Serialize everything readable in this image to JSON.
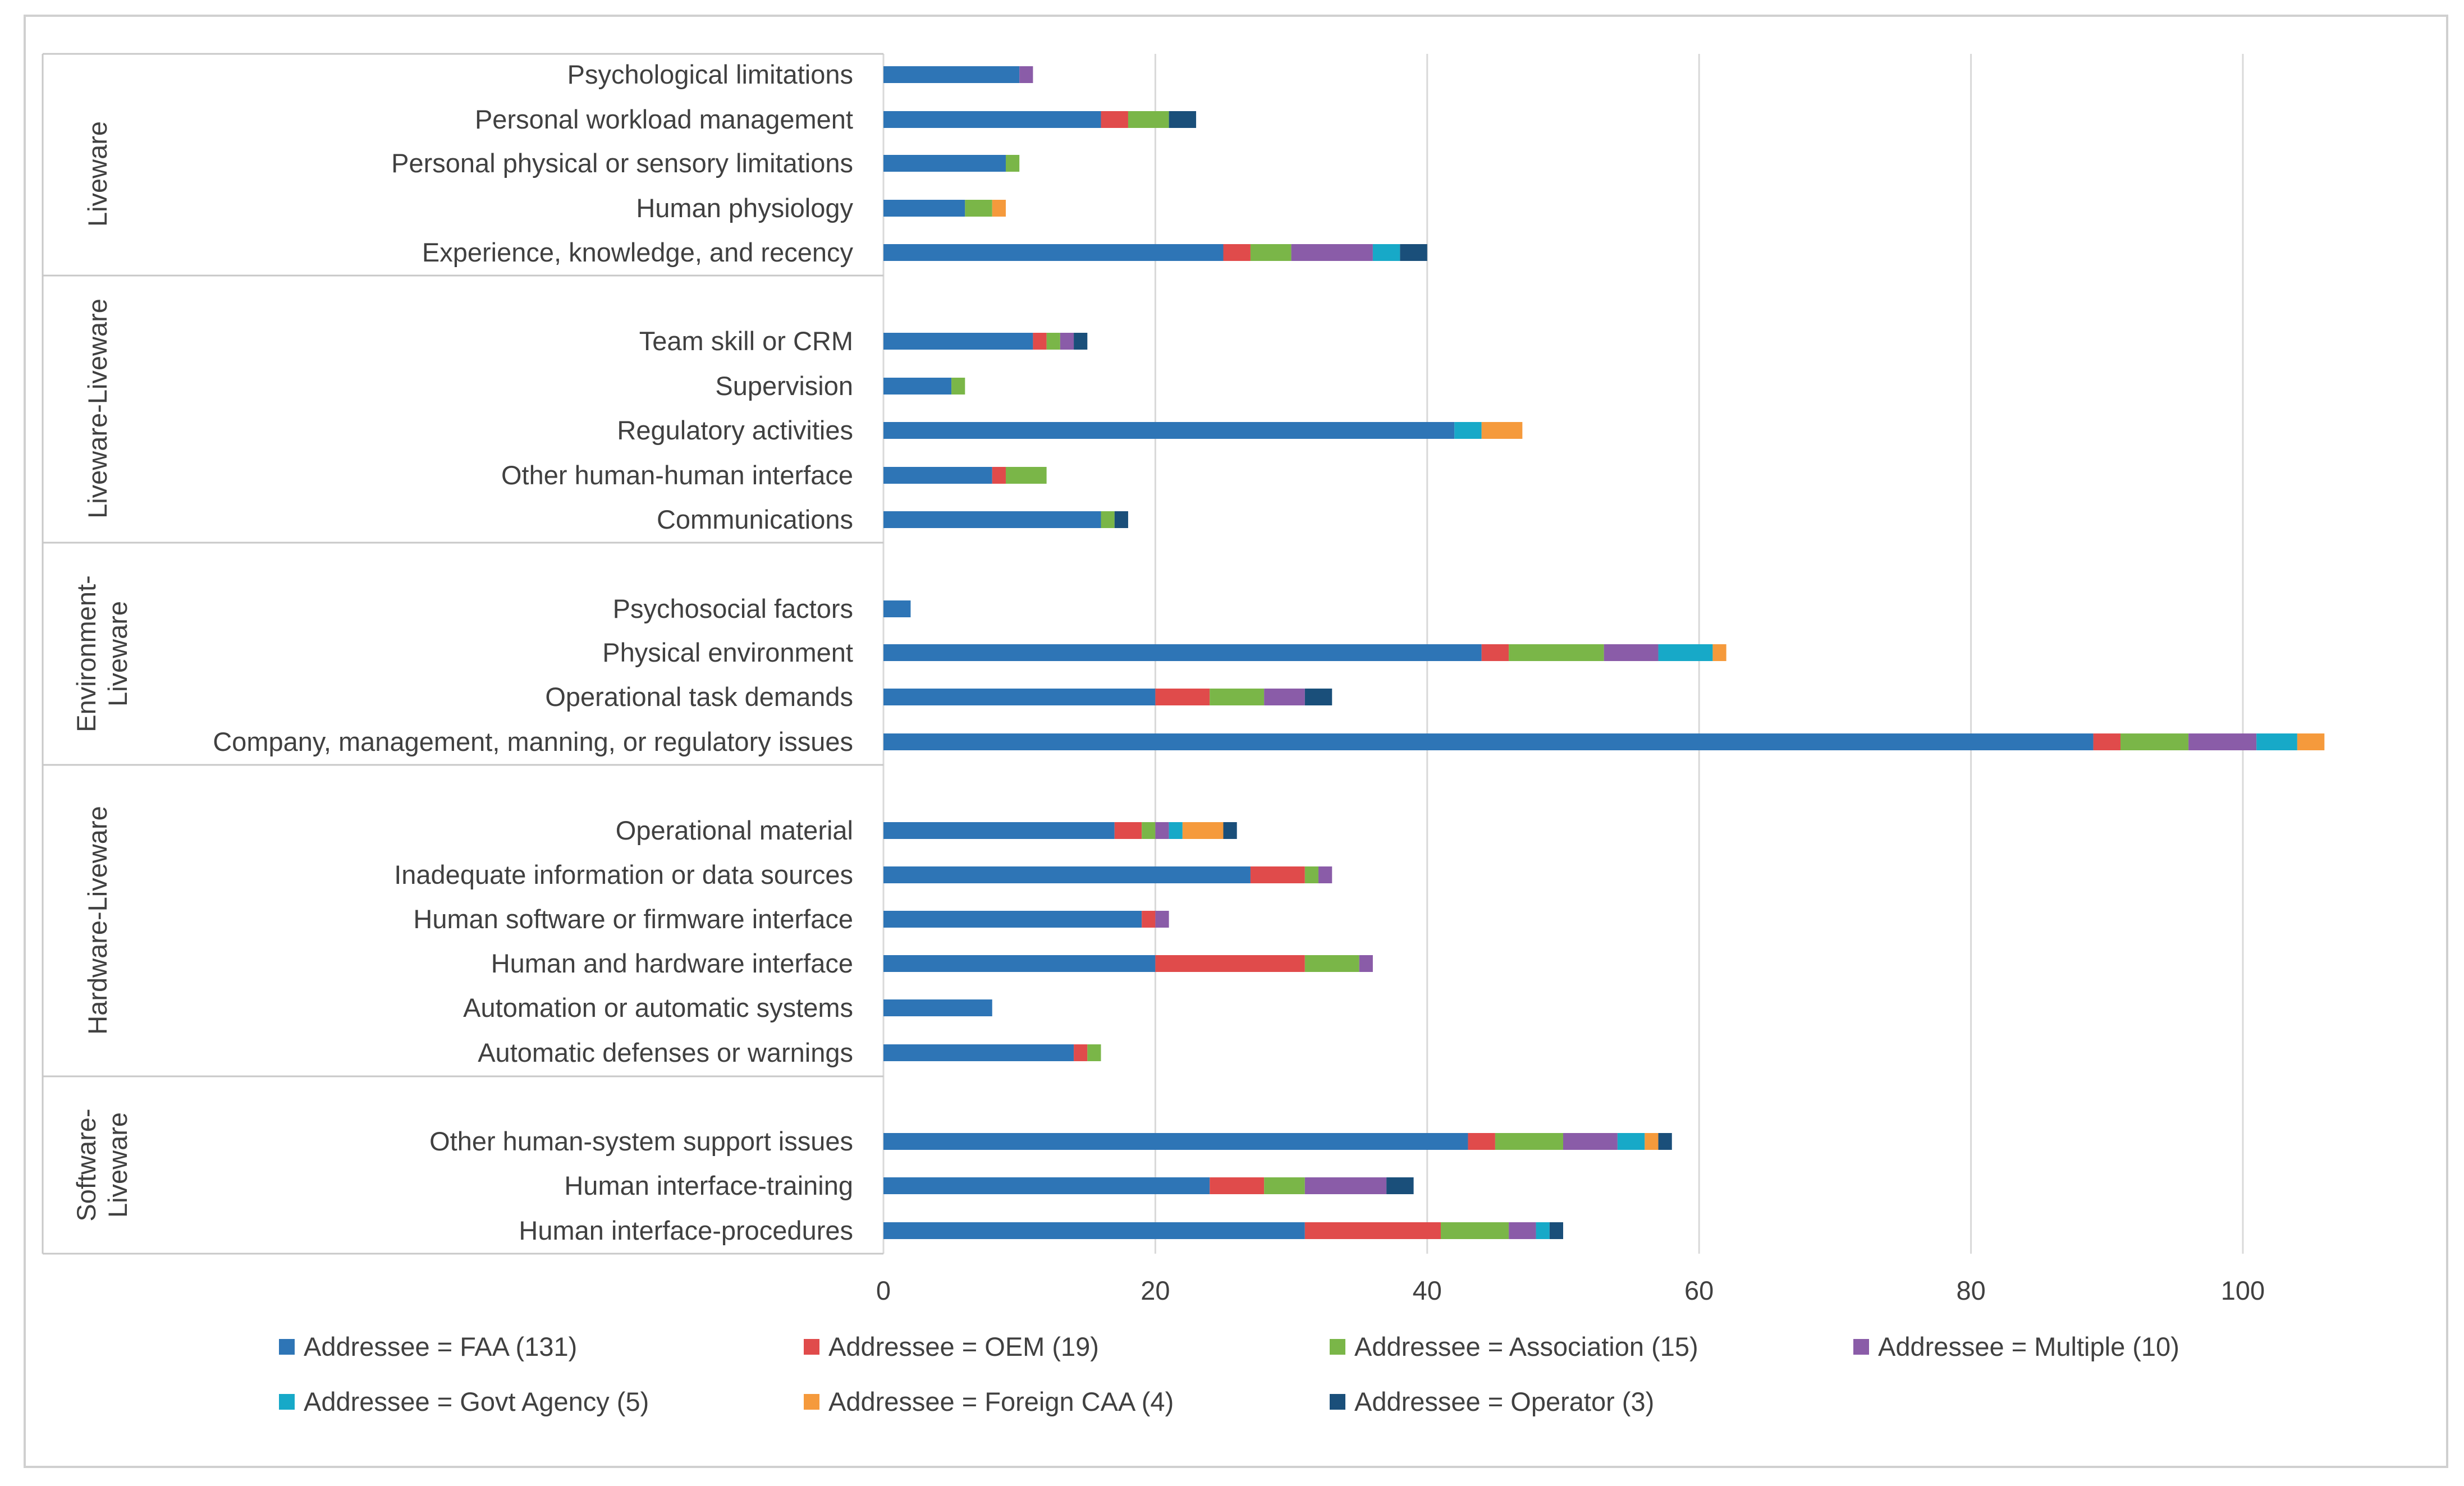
{
  "chart_data": {
    "type": "bar",
    "orientation": "horizontal",
    "stacked": true,
    "title": "",
    "xlabel": "",
    "ylabel": "",
    "xlim": [
      0,
      110
    ],
    "x_ticks": [
      0,
      20,
      40,
      60,
      80,
      100
    ],
    "grid": true,
    "legend_position": "bottom",
    "series": [
      {
        "name": "Addressee = FAA (131)",
        "color": "#2e75b6"
      },
      {
        "name": "Addressee = OEM (19)",
        "color": "#e04b4b"
      },
      {
        "name": "Addressee = Association (15)",
        "color": "#7ab648"
      },
      {
        "name": "Addressee = Multiple (10)",
        "color": "#8a5ca8"
      },
      {
        "name": "Addressee = Govt Agency (5)",
        "color": "#17a9c8"
      },
      {
        "name": "Addressee = Foreign CAA (4)",
        "color": "#f59a3c"
      },
      {
        "name": "Addressee = Operator (3)",
        "color": "#1a4f7a"
      }
    ],
    "groups": [
      {
        "label_lines": [
          "Liveware"
        ],
        "categories": [
          {
            "label": "Psychological limitations",
            "values": [
              10,
              0,
              0,
              1,
              0,
              0,
              0
            ]
          },
          {
            "label": "Personal workload management",
            "values": [
              16,
              2,
              3,
              0,
              0,
              0,
              2
            ]
          },
          {
            "label": "Personal physical or sensory limitations",
            "values": [
              9,
              0,
              1,
              0,
              0,
              0,
              0
            ]
          },
          {
            "label": "Human physiology",
            "values": [
              6,
              0,
              2,
              0,
              0,
              1,
              0
            ]
          },
          {
            "label": "Experience, knowledge, and recency",
            "values": [
              25,
              2,
              3,
              6,
              2,
              0,
              2
            ]
          }
        ]
      },
      {
        "label_lines": [
          "Liveware-Liveware"
        ],
        "categories": [
          {
            "label": "Team skill or CRM",
            "values": [
              11,
              1,
              1,
              1,
              0,
              0,
              1
            ]
          },
          {
            "label": "Supervision",
            "values": [
              5,
              0,
              1,
              0,
              0,
              0,
              0
            ]
          },
          {
            "label": "Regulatory activities",
            "values": [
              42,
              0,
              0,
              0,
              2,
              3,
              0
            ]
          },
          {
            "label": "Other human-human interface",
            "values": [
              8,
              1,
              3,
              0,
              0,
              0,
              0
            ]
          },
          {
            "label": "Communications",
            "values": [
              16,
              0,
              1,
              0,
              0,
              0,
              1
            ]
          }
        ]
      },
      {
        "label_lines": [
          "Environment-",
          "Liveware"
        ],
        "categories": [
          {
            "label": "Psychosocial factors",
            "values": [
              2,
              0,
              0,
              0,
              0,
              0,
              0
            ]
          },
          {
            "label": "Physical environment",
            "values": [
              44,
              2,
              7,
              4,
              4,
              1,
              0
            ]
          },
          {
            "label": "Operational task demands",
            "values": [
              20,
              4,
              4,
              3,
              0,
              0,
              2
            ]
          },
          {
            "label": "Company, management, manning, or regulatory issues",
            "values": [
              89,
              2,
              5,
              5,
              3,
              2,
              0
            ]
          }
        ]
      },
      {
        "label_lines": [
          "Hardware-Liveware"
        ],
        "categories": [
          {
            "label": "Operational material",
            "values": [
              17,
              2,
              1,
              1,
              1,
              3,
              1
            ]
          },
          {
            "label": "Inadequate information or data sources",
            "values": [
              27,
              4,
              1,
              1,
              0,
              0,
              0
            ]
          },
          {
            "label": "Human software or firmware interface",
            "values": [
              19,
              1,
              0,
              1,
              0,
              0,
              0
            ]
          },
          {
            "label": "Human and hardware interface",
            "values": [
              20,
              11,
              4,
              1,
              0,
              0,
              0
            ]
          },
          {
            "label": "Automation or automatic systems",
            "values": [
              8,
              0,
              0,
              0,
              0,
              0,
              0
            ]
          },
          {
            "label": "Automatic defenses or warnings",
            "values": [
              14,
              1,
              1,
              0,
              0,
              0,
              0
            ]
          }
        ]
      },
      {
        "label_lines": [
          "Software-",
          "Liveware"
        ],
        "categories": [
          {
            "label": "Other human-system support issues",
            "values": [
              43,
              2,
              5,
              4,
              2,
              1,
              1
            ]
          },
          {
            "label": "Human interface-training",
            "values": [
              24,
              4,
              3,
              6,
              0,
              0,
              2
            ]
          },
          {
            "label": "Human interface-procedures",
            "values": [
              31,
              10,
              5,
              2,
              1,
              0,
              1
            ]
          }
        ]
      }
    ]
  }
}
